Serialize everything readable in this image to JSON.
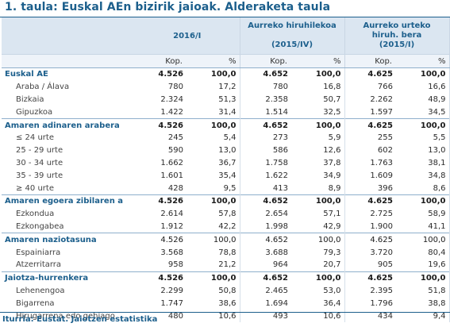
{
  "title": "1. taula: Euskal AEn bizirik jaioak. Alderaketa taula",
  "columns": {
    "c1": "2016/I",
    "c2_line1": "Aurreko hiruhilekoa",
    "c2_line2": "(2015/IV)",
    "c3_line1": "Aurreko urteko",
    "c3_line2": "hiruh. bera",
    "c3_line3": "(2015/I)",
    "kop": "Kop.",
    "pct": "%"
  },
  "rows": [
    {
      "label": "Euskal AE",
      "group": true,
      "v": [
        "4.526",
        "100,0",
        "4.652",
        "100,0",
        "4.625",
        "100,0"
      ]
    },
    {
      "label": "Araba / Álava",
      "group": false,
      "v": [
        "780",
        "17,2",
        "780",
        "16,8",
        "766",
        "16,6"
      ]
    },
    {
      "label": "Bizkaia",
      "group": false,
      "v": [
        "2.324",
        "51,3",
        "2.358",
        "50,7",
        "2.262",
        "48,9"
      ]
    },
    {
      "label": "Gipuzkoa",
      "group": false,
      "v": [
        "1.422",
        "31,4",
        "1.514",
        "32,5",
        "1.597",
        "34,5"
      ]
    },
    {
      "label": "Amaren adinaren arabera",
      "group": true,
      "v": [
        "4.526",
        "100,0",
        "4.652",
        "100,0",
        "4.625",
        "100,0"
      ]
    },
    {
      "label": "≤ 24 urte",
      "group": false,
      "v": [
        "245",
        "5,4",
        "273",
        "5,9",
        "255",
        "5,5"
      ]
    },
    {
      "label": "25 - 29 urte",
      "group": false,
      "v": [
        "590",
        "13,0",
        "586",
        "12,6",
        "602",
        "13,0"
      ]
    },
    {
      "label": "30 - 34 urte",
      "group": false,
      "v": [
        "1.662",
        "36,7",
        "1.758",
        "37,8",
        "1.763",
        "38,1"
      ]
    },
    {
      "label": "35 - 39 urte",
      "group": false,
      "v": [
        "1.601",
        "35,4",
        "1.622",
        "34,9",
        "1.609",
        "34,8"
      ]
    },
    {
      "label": "≥ 40 urte",
      "group": false,
      "v": [
        "428",
        "9,5",
        "413",
        "8,9",
        "396",
        "8,6"
      ]
    },
    {
      "label": "Amaren egoera zibilaren a",
      "group": true,
      "v": [
        "4.526",
        "100,0",
        "4.652",
        "100,0",
        "4.625",
        "100,0"
      ]
    },
    {
      "label": "Ezkondua",
      "group": false,
      "v": [
        "2.614",
        "57,8",
        "2.654",
        "57,1",
        "2.725",
        "58,9"
      ]
    },
    {
      "label": "Ezkongabea",
      "group": false,
      "v": [
        "1.912",
        "42,2",
        "1.998",
        "42,9",
        "1.900",
        "41,1"
      ]
    },
    {
      "label": "Amaren naziotasuna",
      "group": true,
      "boldvals": false,
      "v": [
        "4.526",
        "100,0",
        "4.652",
        "100,0",
        "4.625",
        "100,0"
      ]
    },
    {
      "label": "Espainiarra",
      "group": false,
      "v": [
        "3.568",
        "78,8",
        "3.688",
        "79,3",
        "3.720",
        "80,4"
      ]
    },
    {
      "label": "Atzerritarra",
      "group": false,
      "v": [
        "958",
        "21,2",
        "964",
        "20,7",
        "905",
        "19,6"
      ]
    },
    {
      "label": "Jaiotza-hurrenkera",
      "group": true,
      "v": [
        "4.526",
        "100,0",
        "4.652",
        "100,0",
        "4.625",
        "100,0"
      ]
    },
    {
      "label": "Lehenengoa",
      "group": false,
      "v": [
        "2.299",
        "50,8",
        "2.465",
        "53,0",
        "2.395",
        "51,8"
      ]
    },
    {
      "label": "Bigarrena",
      "group": false,
      "v": [
        "1.747",
        "38,6",
        "1.694",
        "36,4",
        "1.796",
        "38,8"
      ]
    },
    {
      "label": "Hirugarrena edo gehiago",
      "group": false,
      "v": [
        "480",
        "10,6",
        "493",
        "10,6",
        "434",
        "9,4"
      ]
    }
  ],
  "source": "Iturria: Eustat. Jaiotzen estatistika"
}
